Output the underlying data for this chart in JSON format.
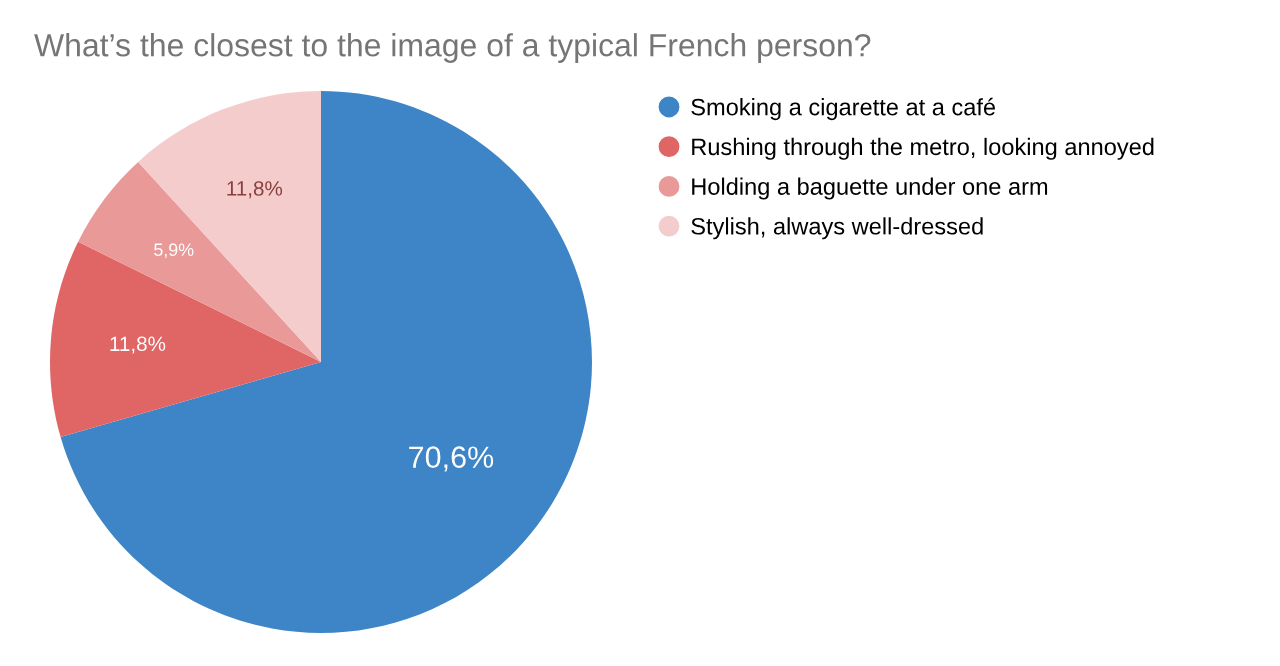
{
  "chart_data": {
    "type": "pie",
    "title": "What’s the closest to the image of a typical French person?",
    "categories": [
      "Smoking a cigarette at a café",
      "Rushing through the metro, looking annoyed",
      "Holding a baguette under one arm",
      "Stylish, always well-dressed"
    ],
    "values": [
      70.6,
      11.8,
      5.9,
      11.8
    ],
    "colors": [
      "#3d85c6",
      "#e06666",
      "#ea9999",
      "#f4cccc"
    ],
    "value_labels": [
      "70,6%",
      "11,8%",
      "5,9%",
      "11,8%"
    ],
    "legend": "right"
  }
}
